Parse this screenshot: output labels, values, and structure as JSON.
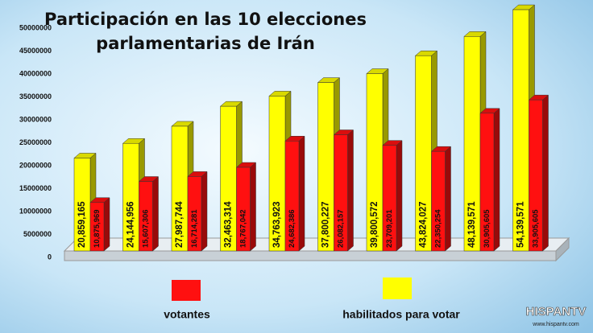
{
  "chart_data": {
    "type": "bar",
    "title": [
      "Participación en las 10 elecciones",
      "parlamentarias de Irán"
    ],
    "ylim": [
      0,
      50000000
    ],
    "yticks": [
      0,
      5000000,
      10000000,
      15000000,
      20000000,
      25000000,
      30000000,
      35000000,
      40000000,
      45000000,
      50000000
    ],
    "series": [
      {
        "name": "habilitados para votar",
        "color": "#ffff00",
        "values": [
          20859165,
          24144956,
          27987744,
          32463314,
          34763923,
          37800227,
          39800572,
          43824027,
          48139571,
          54139571
        ],
        "value_labels": [
          "20,859,165",
          "24,144,956",
          "27,987,744",
          "32,463,314",
          "34,763,923",
          "37,800,227",
          "39,800,572",
          "43,824,027",
          "48,139,571",
          "54,139,571"
        ]
      },
      {
        "name": "votantes",
        "color": "#ff1010",
        "values": [
          10875969,
          15607306,
          16714281,
          18767042,
          24682386,
          26082157,
          23709201,
          22350254,
          30905605,
          33905605
        ],
        "value_labels": [
          "10,875,969",
          "15,607,306",
          "16,714,281",
          "18,767,042",
          "24,682,386",
          "26,082,157",
          "23,709,201",
          "22,350,254",
          "30,905,605",
          "33,905,605"
        ]
      }
    ],
    "watermark": [
      "HISPANTV",
      "www.hispantv.com"
    ]
  }
}
